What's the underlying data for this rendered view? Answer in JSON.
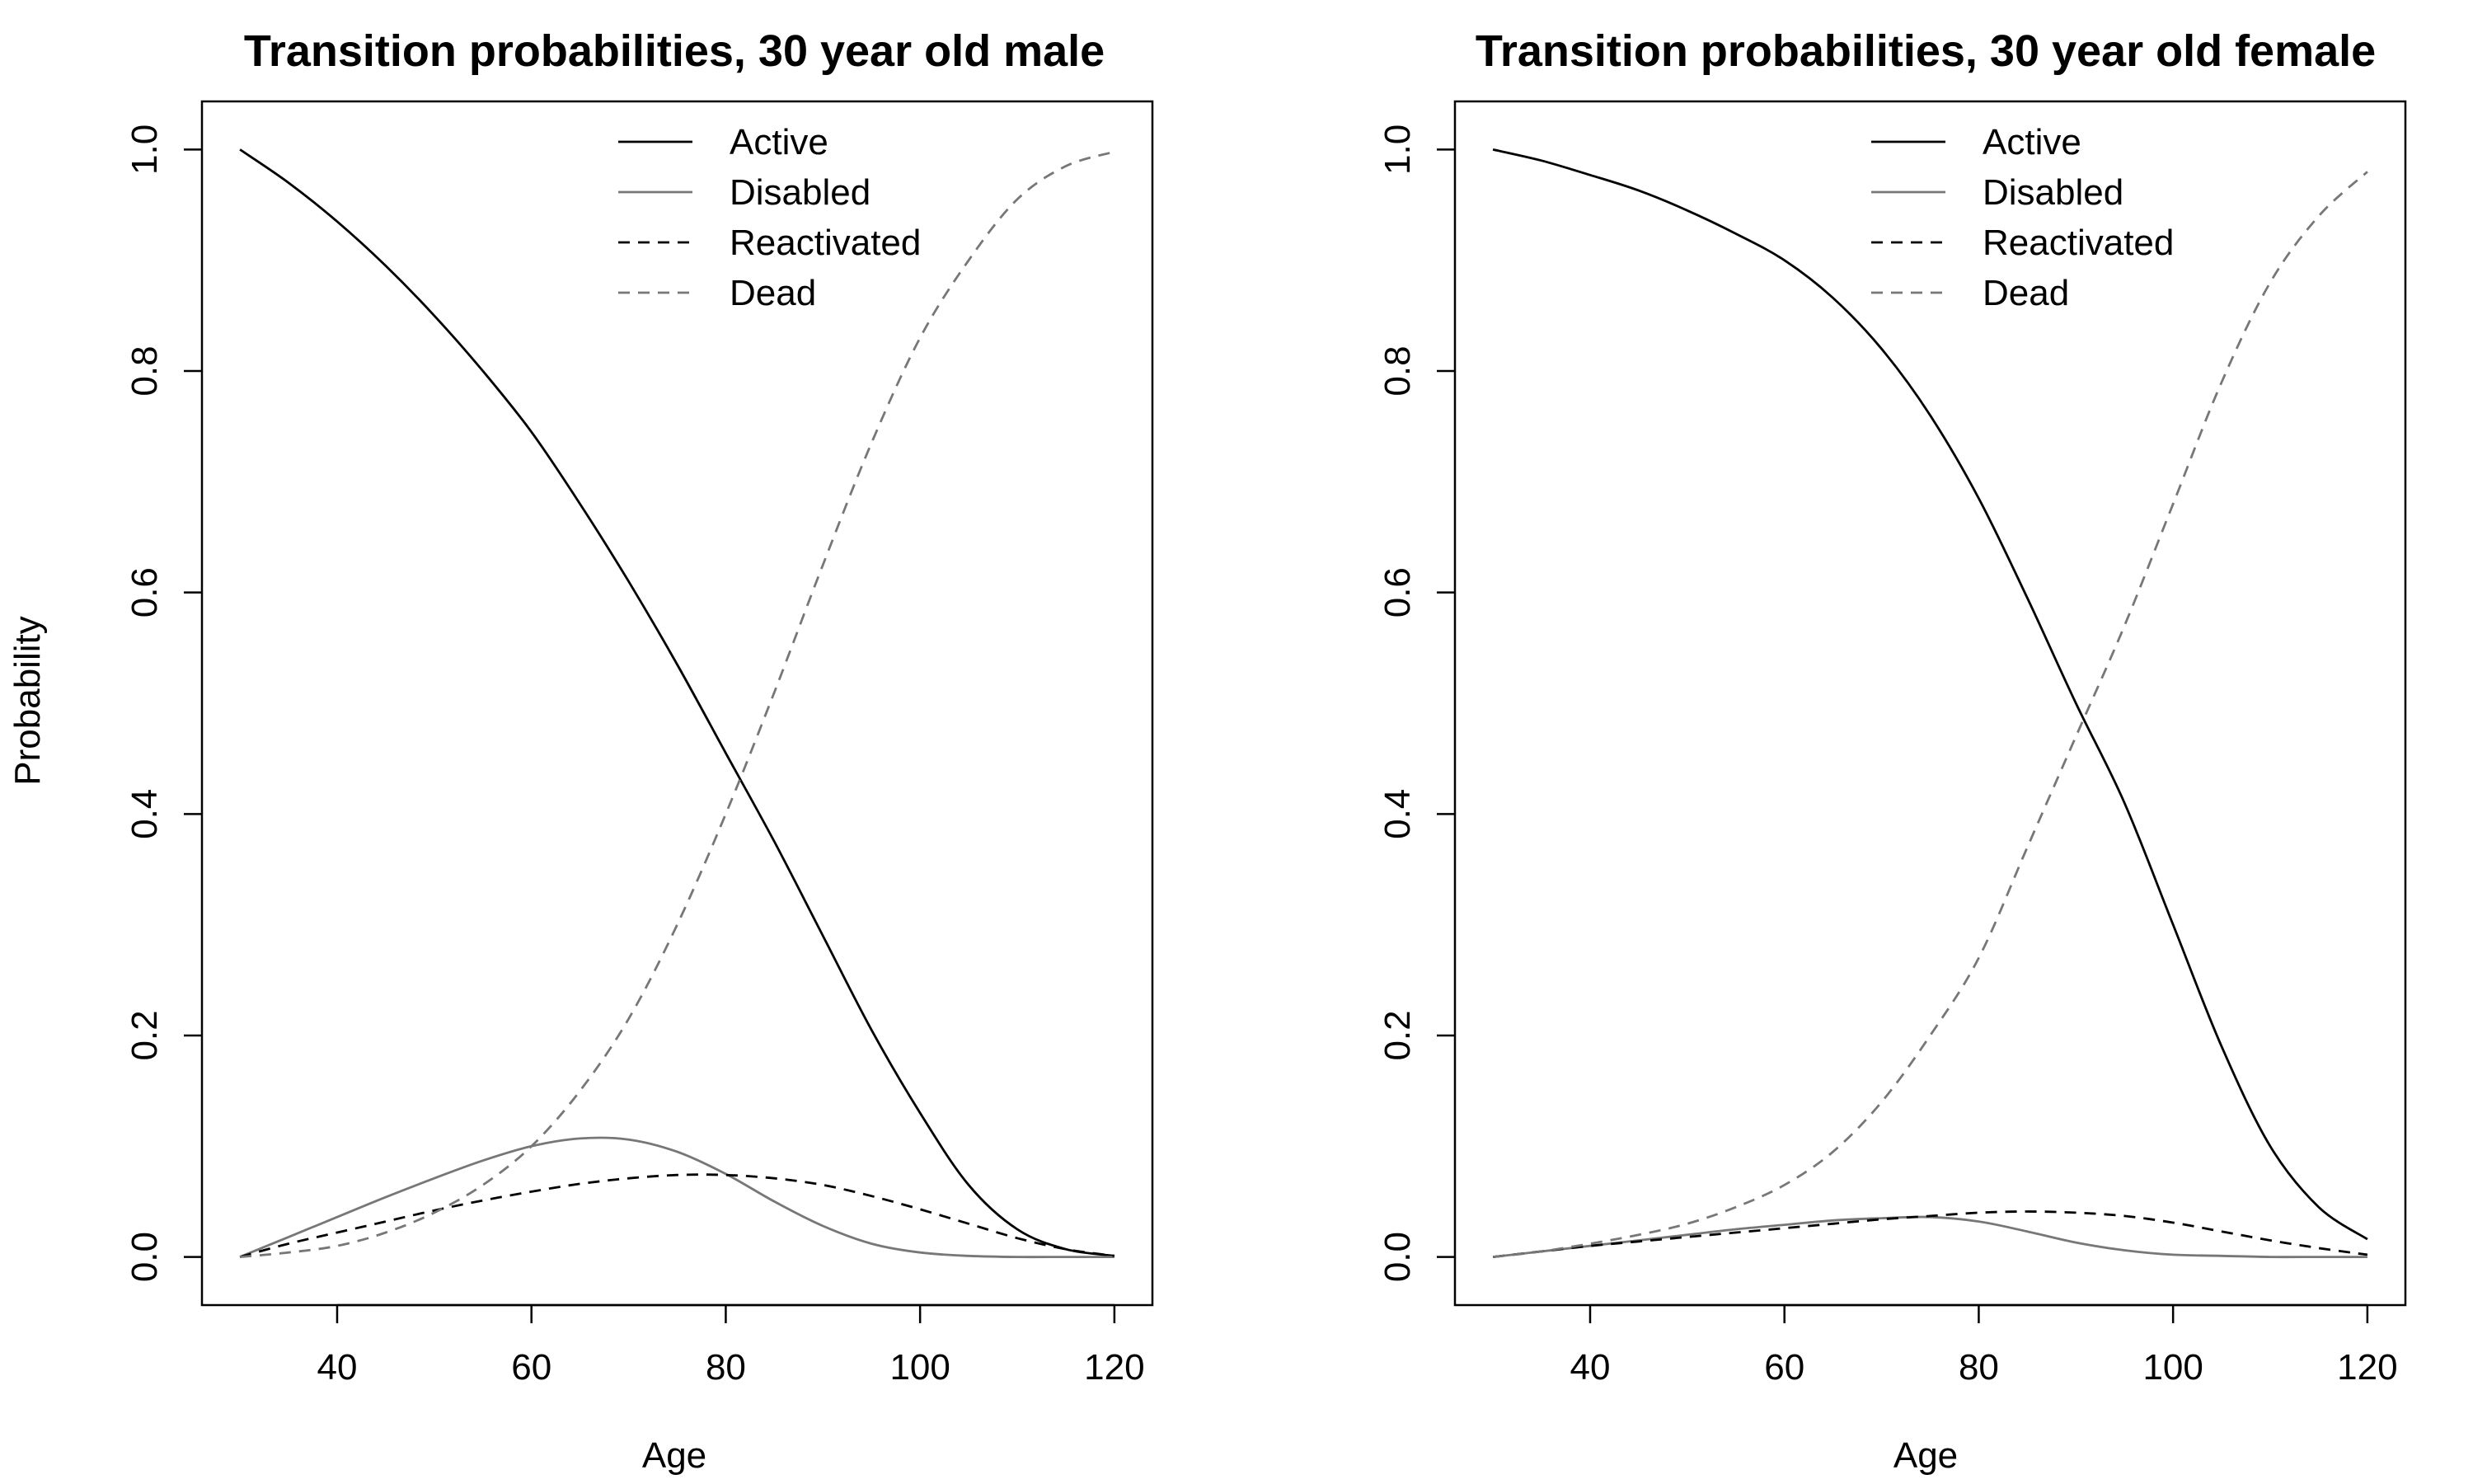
{
  "chart_data": [
    {
      "type": "line",
      "title": "Transition probabilities, 30 year old male",
      "xlabel": "Age",
      "ylabel": "Probability",
      "xlim": [
        30,
        120
      ],
      "ylim": [
        0,
        1
      ],
      "xticks": [
        40,
        60,
        80,
        100,
        120
      ],
      "yticks": [
        0,
        0.2,
        0.4,
        0.6,
        0.8,
        1
      ],
      "ytick_labels": [
        "0.0",
        "0.2",
        "0.4",
        "0.6",
        "0.8",
        "1.0"
      ],
      "legend_position": "top-right",
      "x": [
        30,
        35,
        40,
        45,
        50,
        55,
        60,
        65,
        70,
        75,
        80,
        85,
        90,
        95,
        100,
        105,
        110,
        115,
        120
      ],
      "series": [
        {
          "name": "Active",
          "color": "#000000",
          "dash": "solid",
          "values": [
            1.0,
            0.97,
            0.935,
            0.895,
            0.85,
            0.8,
            0.745,
            0.68,
            0.61,
            0.535,
            0.455,
            0.375,
            0.29,
            0.205,
            0.13,
            0.065,
            0.025,
            0.007,
            0.001
          ]
        },
        {
          "name": "Disabled",
          "color": "#777777",
          "dash": "solid",
          "values": [
            0.0,
            0.018,
            0.036,
            0.054,
            0.071,
            0.087,
            0.1,
            0.107,
            0.106,
            0.095,
            0.075,
            0.05,
            0.028,
            0.012,
            0.004,
            0.001,
            0.0,
            0.0,
            0.0
          ]
        },
        {
          "name": "Reactivated",
          "color": "#000000",
          "dash": "dashed",
          "values": [
            0.0,
            0.012,
            0.022,
            0.032,
            0.042,
            0.051,
            0.059,
            0.066,
            0.071,
            0.074,
            0.074,
            0.071,
            0.065,
            0.055,
            0.043,
            0.03,
            0.017,
            0.007,
            0.001
          ]
        },
        {
          "name": "Dead",
          "color": "#777777",
          "dash": "dashed",
          "values": [
            0.0,
            0.004,
            0.01,
            0.022,
            0.04,
            0.065,
            0.1,
            0.15,
            0.215,
            0.3,
            0.4,
            0.51,
            0.625,
            0.735,
            0.83,
            0.9,
            0.955,
            0.985,
            0.998
          ]
        }
      ]
    },
    {
      "type": "line",
      "title": "Transition probabilities, 30 year old female",
      "xlabel": "Age",
      "ylabel": "",
      "xlim": [
        30,
        120
      ],
      "ylim": [
        0,
        1
      ],
      "xticks": [
        40,
        60,
        80,
        100,
        120
      ],
      "yticks": [
        0,
        0.2,
        0.4,
        0.6,
        0.8,
        1
      ],
      "ytick_labels": [
        "0.0",
        "0.2",
        "0.4",
        "0.6",
        "0.8",
        "1.0"
      ],
      "legend_position": "top-right",
      "x": [
        30,
        35,
        40,
        45,
        50,
        55,
        60,
        65,
        70,
        75,
        80,
        85,
        90,
        95,
        100,
        105,
        110,
        115,
        120
      ],
      "series": [
        {
          "name": "Active",
          "color": "#000000",
          "dash": "solid",
          "values": [
            1.0,
            0.99,
            0.977,
            0.963,
            0.945,
            0.924,
            0.9,
            0.866,
            0.82,
            0.76,
            0.685,
            0.595,
            0.5,
            0.41,
            0.3,
            0.19,
            0.1,
            0.045,
            0.016
          ]
        },
        {
          "name": "Disabled",
          "color": "#777777",
          "dash": "solid",
          "values": [
            0.0,
            0.005,
            0.01,
            0.015,
            0.02,
            0.025,
            0.029,
            0.033,
            0.035,
            0.036,
            0.032,
            0.023,
            0.013,
            0.006,
            0.002,
            0.001,
            0.0,
            0.0,
            0.0
          ]
        },
        {
          "name": "Reactivated",
          "color": "#000000",
          "dash": "dashed",
          "values": [
            0.0,
            0.005,
            0.01,
            0.014,
            0.018,
            0.022,
            0.026,
            0.03,
            0.034,
            0.037,
            0.04,
            0.041,
            0.04,
            0.037,
            0.031,
            0.023,
            0.015,
            0.008,
            0.002
          ]
        },
        {
          "name": "Dead",
          "color": "#777777",
          "dash": "dashed",
          "values": [
            0.0,
            0.005,
            0.012,
            0.02,
            0.03,
            0.045,
            0.065,
            0.095,
            0.14,
            0.2,
            0.27,
            0.37,
            0.47,
            0.57,
            0.68,
            0.79,
            0.88,
            0.94,
            0.98
          ]
        }
      ]
    }
  ]
}
